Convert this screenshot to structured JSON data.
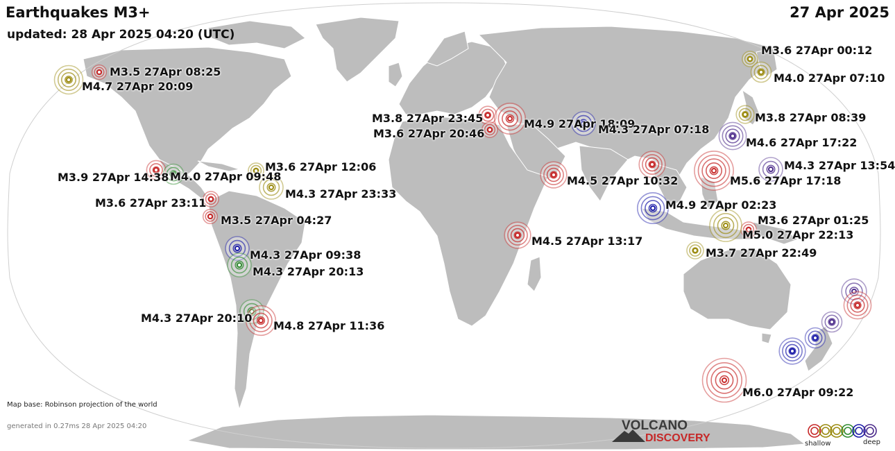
{
  "header": {
    "title": "Earthquakes M3+",
    "updated": "updated: 28 Apr 2025 04:20 (UTC)",
    "date": "27 Apr 2025"
  },
  "footer": {
    "map_base": "Map base: Robinson projection of the world",
    "generated": "generated in 0.27ms 28 Apr 2025 04:20",
    "logo_top": "VOLCANO",
    "logo_bottom": "DISCOVERY",
    "legend_shallow": "shallow",
    "legend_deep": "deep"
  },
  "depth_colors": {
    "red": "#c62828",
    "olive": "#9a8a0e",
    "green": "#2e8b2e",
    "purple": "#4b2a8a",
    "blue": "#1a1aa8"
  },
  "colors": {
    "ocean": "#ffffff",
    "land": "#bdbdbd",
    "border": "#ffffff",
    "logo_dark": "#3a3a3a",
    "logo_red": "#c62828"
  },
  "quakes": [
    {
      "label": "M3.5 27Apr 08:25",
      "mag": 3.5,
      "color": "red"
    },
    {
      "label": "M4.7 27Apr 20:09",
      "mag": 4.7,
      "color": "olive"
    },
    {
      "label": "M3.9 27Apr 14:38",
      "mag": 3.9,
      "color": "red"
    },
    {
      "label": "M4.0 27Apr 09:48",
      "mag": 4.0,
      "color": "green"
    },
    {
      "label": "M3.6 27Apr 12:06",
      "mag": 3.6,
      "color": "olive"
    },
    {
      "label": "M4.3 27Apr 23:33",
      "mag": 4.3,
      "color": "olive"
    },
    {
      "label": "M3.6 27Apr 23:11",
      "mag": 3.6,
      "color": "red"
    },
    {
      "label": "M3.5 27Apr 04:27",
      "mag": 3.5,
      "color": "red"
    },
    {
      "label": "M4.3 27Apr 09:38",
      "mag": 4.3,
      "color": "blue"
    },
    {
      "label": "M4.3 27Apr 20:13",
      "mag": 4.3,
      "color": "green"
    },
    {
      "label": "M4.3 27Apr 20:10",
      "mag": 4.3,
      "color": "green"
    },
    {
      "label": "M4.8 27Apr 11:36",
      "mag": 4.8,
      "color": "red"
    },
    {
      "label": "M3.8 27Apr 23:45",
      "mag": 3.8,
      "color": "red"
    },
    {
      "label": "M3.6 27Apr 20:46",
      "mag": 3.6,
      "color": "red"
    },
    {
      "label": "M4.9 27Apr 18:09",
      "mag": 4.9,
      "color": "red"
    },
    {
      "label": "M4.3 27Apr 07:18",
      "mag": 4.3,
      "color": "blue"
    },
    {
      "label": "M4.5 27Apr 10:32",
      "mag": 4.5,
      "color": "red"
    },
    {
      "label": "M4.5 27Apr 13:17",
      "mag": 4.5,
      "color": "red"
    },
    {
      "label": "M3.6 27Apr 00:12",
      "mag": 3.6,
      "color": "olive"
    },
    {
      "label": "M4.0 27Apr 07:10",
      "mag": 4.0,
      "color": "olive"
    },
    {
      "label": "M3.8 27Apr 08:39",
      "mag": 3.8,
      "color": "olive"
    },
    {
      "label": "M4.6 27Apr 17:22",
      "mag": 4.6,
      "color": "purple"
    },
    {
      "label": "M4.3 27Apr 13:54",
      "mag": 4.3,
      "color": "purple"
    },
    {
      "label": "M5.6 27Apr 17:18",
      "mag": 5.6,
      "color": "red"
    },
    {
      "label": "",
      "mag": 4.5,
      "color": "red"
    },
    {
      "label": "M4.9 27Apr 02:23",
      "mag": 4.9,
      "color": "blue"
    },
    {
      "label": "M3.6 27Apr 01:25",
      "mag": 3.6,
      "color": "red"
    },
    {
      "label": "M5.0 27Apr 22:13",
      "mag": 5.0,
      "color": "olive"
    },
    {
      "label": "M3.7 27Apr 22:49",
      "mag": 3.7,
      "color": "olive"
    },
    {
      "label": "",
      "mag": 4.4,
      "color": "purple"
    },
    {
      "label": "",
      "mag": 4.6,
      "color": "red"
    },
    {
      "label": "",
      "mag": 4.0,
      "color": "purple"
    },
    {
      "label": "",
      "mag": 4.5,
      "color": "blue"
    },
    {
      "label": "",
      "mag": 4.0,
      "color": "blue"
    },
    {
      "label": "M6.0 27Apr 09:22",
      "mag": 6.0,
      "color": "red"
    }
  ]
}
